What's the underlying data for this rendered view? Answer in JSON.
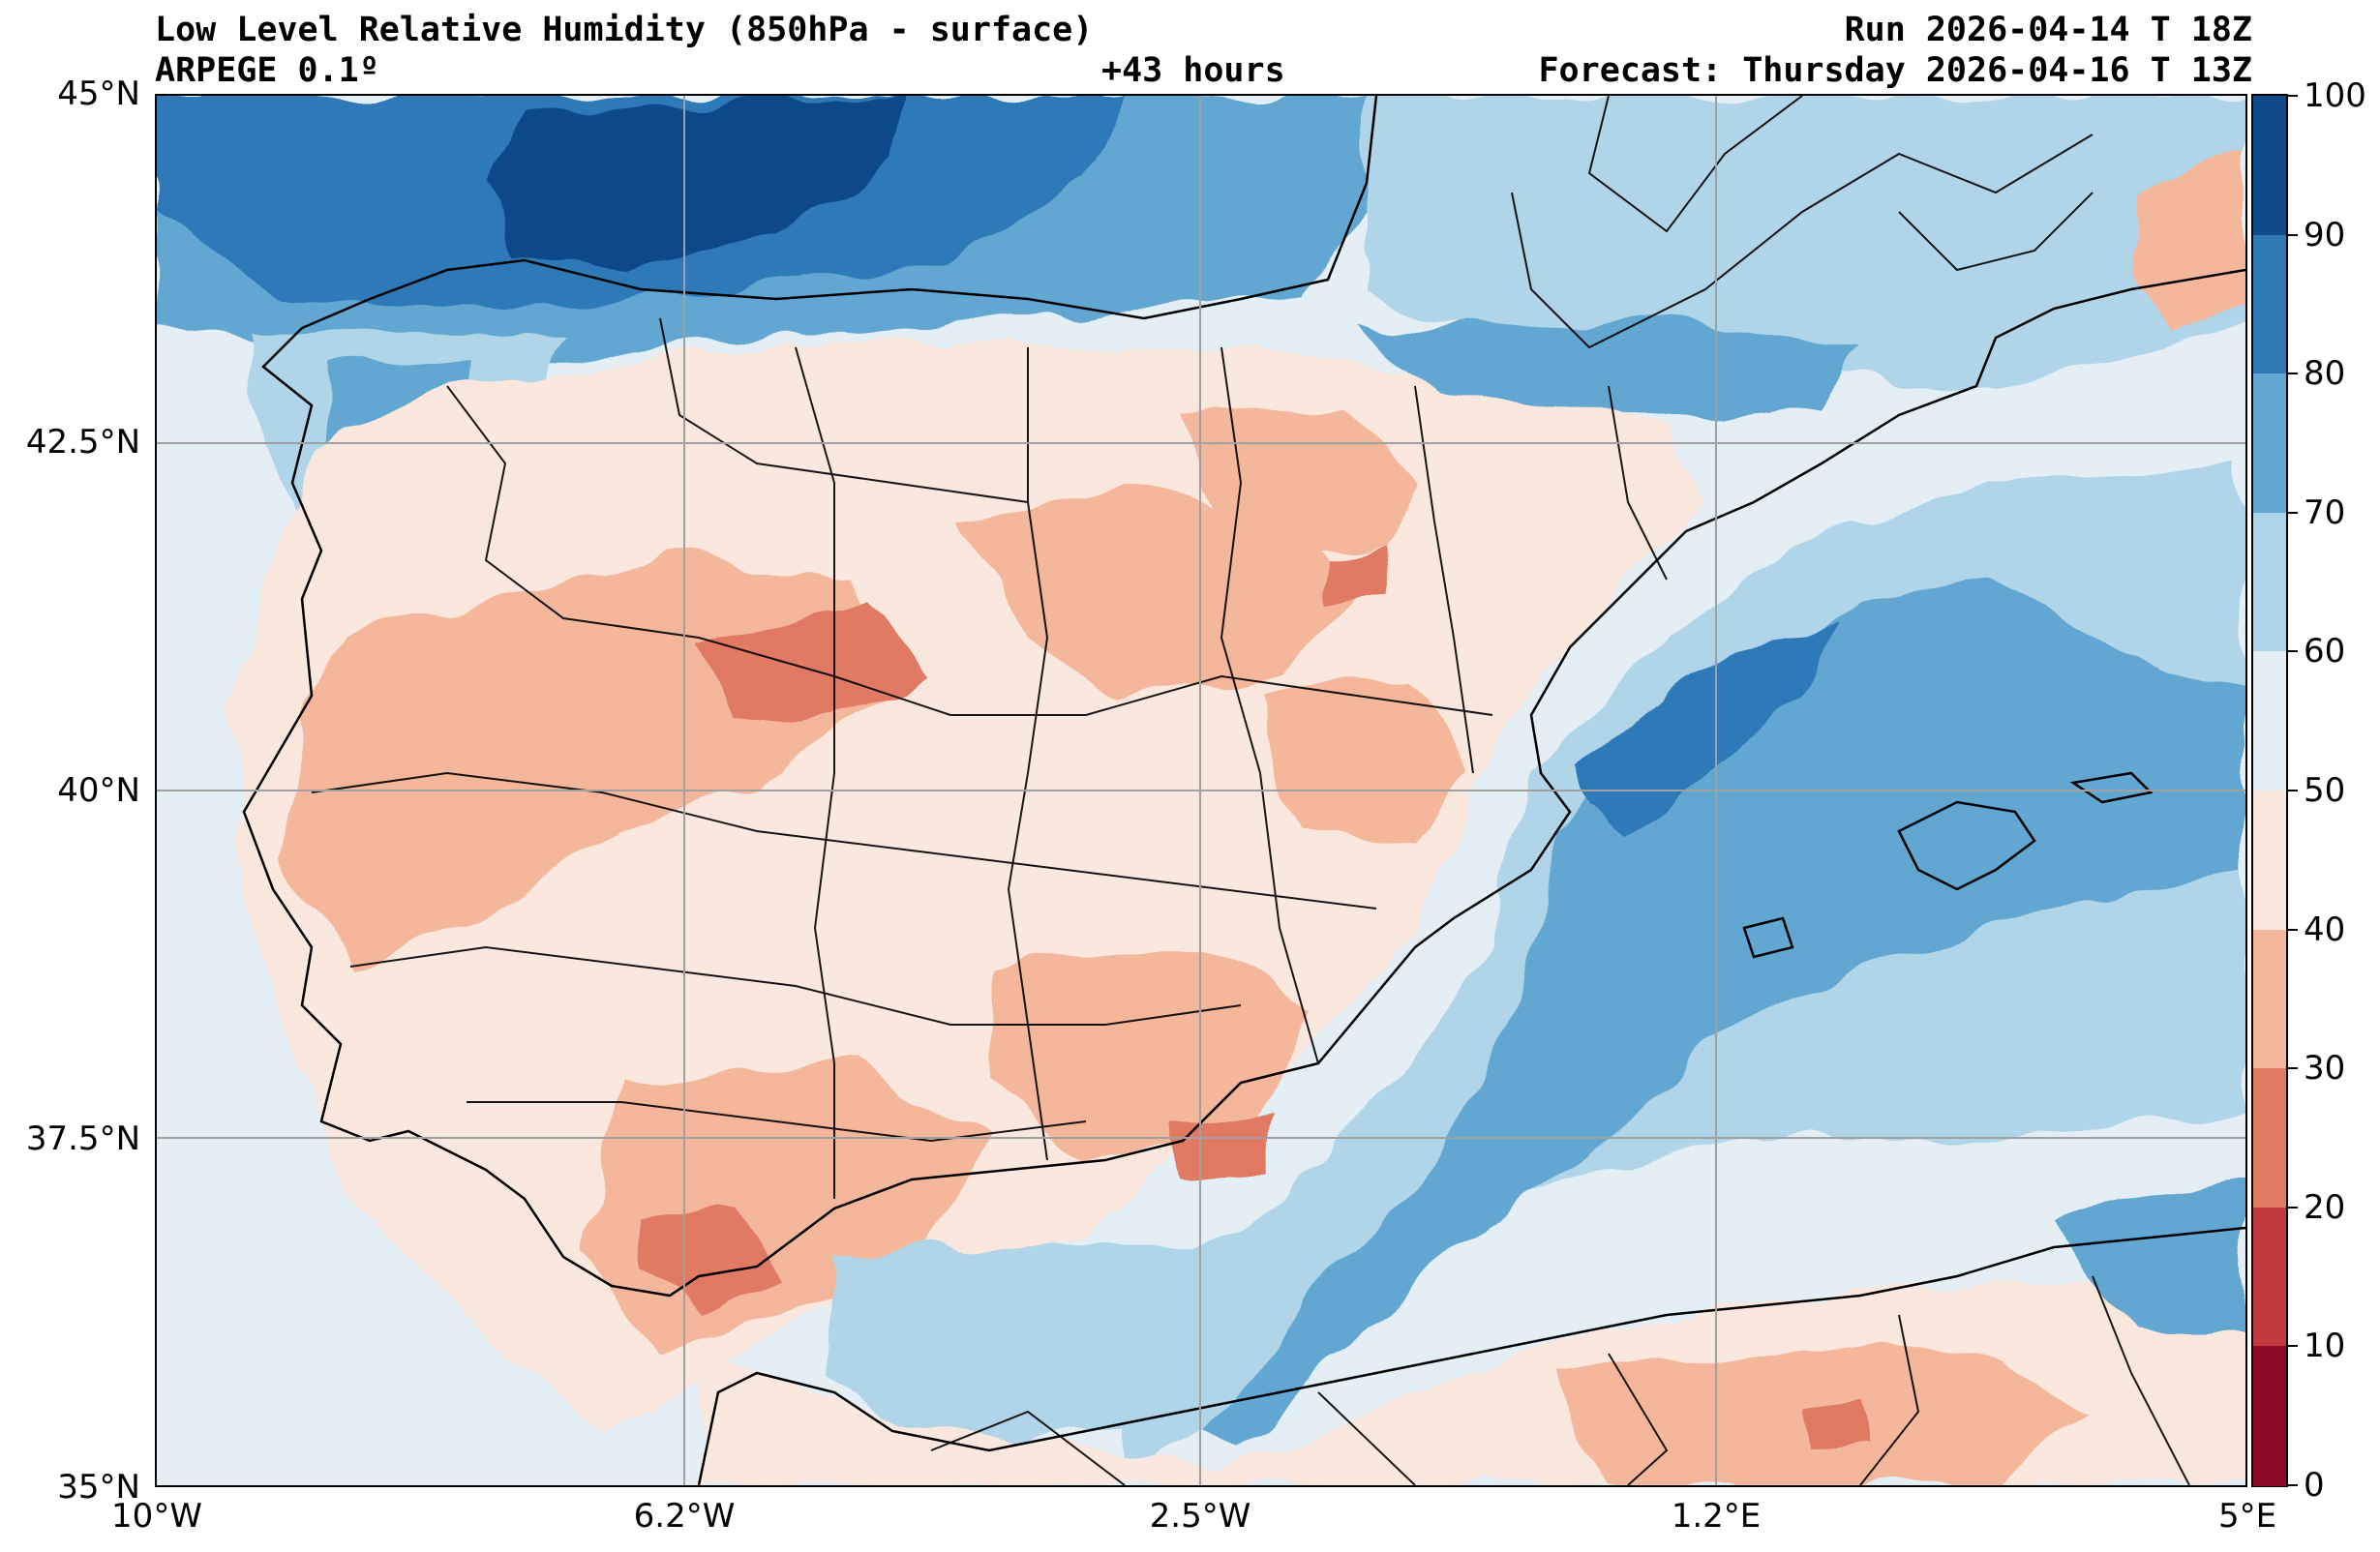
{
  "header": {
    "title": "Low Level Relative Humidity (850hPa - surface)",
    "model": "ARPEGE 0.1º",
    "lead_time": "+43 hours",
    "run": "Run 2026-04-14 T 18Z",
    "forecast": "Forecast: Thursday 2026-04-16 T 13Z"
  },
  "axes": {
    "lat_labels": [
      "45°N",
      "42.5°N",
      "40°N",
      "37.5°N",
      "35°N"
    ],
    "lon_labels": [
      "10°W",
      "6.2°W",
      "2.5°W",
      "1.2°E",
      "5°E"
    ],
    "lat_range": [
      35,
      45
    ],
    "lon_range": [
      -10,
      5
    ]
  },
  "colorbar": {
    "labels": [
      "100",
      "90",
      "80",
      "70",
      "60",
      "50",
      "40",
      "30",
      "20",
      "10",
      "0"
    ],
    "colors": [
      "#0f4a8a",
      "#2f79b7",
      "#62a7d2",
      "#b0d4e8",
      "#e3eef5",
      "#fae7dd",
      "#f5b79c",
      "#e07a63",
      "#c23a3d",
      "#8c0a25"
    ]
  }
}
